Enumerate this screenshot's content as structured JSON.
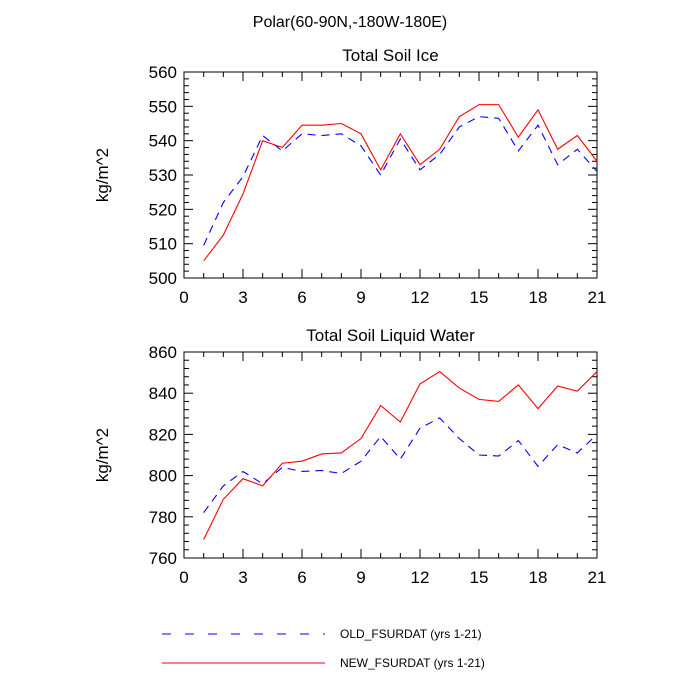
{
  "figure_title": "Polar(60-90N,-180W-180E)",
  "chart_data": [
    {
      "type": "line",
      "title": "Total Soil Ice",
      "xlabel": "",
      "ylabel": "kg/m^2",
      "xlim": [
        0,
        21
      ],
      "ylim": [
        500,
        560
      ],
      "xticks": [
        0,
        3,
        6,
        9,
        12,
        15,
        18,
        21
      ],
      "yticks": [
        500,
        510,
        520,
        530,
        540,
        550,
        560
      ],
      "x": [
        1,
        2,
        3,
        4,
        5,
        6,
        7,
        8,
        9,
        10,
        11,
        12,
        13,
        14,
        15,
        16,
        17,
        18,
        19,
        20,
        21
      ],
      "series": [
        {
          "name": "OLD_FSURDAT (yrs 1-21)",
          "color": "#0000ff",
          "dash": "dashed",
          "values": [
            509.5,
            522,
            529.5,
            541.5,
            537,
            542,
            541.5,
            542,
            538.5,
            530,
            540.5,
            531.5,
            536,
            544,
            547,
            546.5,
            537,
            544.5,
            533,
            537.5,
            531
          ]
        },
        {
          "name": "NEW_FSURDAT (yrs 1-21)",
          "color": "#ff0000",
          "dash": "solid",
          "values": [
            505,
            512.5,
            524.5,
            540,
            538,
            544.5,
            544.5,
            545,
            542,
            531.5,
            542,
            533,
            537.5,
            547,
            550.5,
            550.5,
            541,
            549,
            537.5,
            541.5,
            534
          ]
        }
      ]
    },
    {
      "type": "line",
      "title": "Total Soil Liquid Water",
      "xlabel": "",
      "ylabel": "kg/m^2",
      "xlim": [
        0,
        21
      ],
      "ylim": [
        760,
        860
      ],
      "xticks": [
        0,
        3,
        6,
        9,
        12,
        15,
        18,
        21
      ],
      "yticks": [
        760,
        780,
        800,
        820,
        840,
        860
      ],
      "x": [
        1,
        2,
        3,
        4,
        5,
        6,
        7,
        8,
        9,
        10,
        11,
        12,
        13,
        14,
        15,
        16,
        17,
        18,
        19,
        20,
        21
      ],
      "series": [
        {
          "name": "OLD_FSURDAT (yrs 1-21)",
          "color": "#0000ff",
          "dash": "dashed",
          "values": [
            782,
            795,
            802,
            796,
            804,
            802,
            802.5,
            801,
            807,
            819,
            808,
            823,
            828,
            818,
            810,
            809.5,
            817,
            804.5,
            815,
            811,
            820
          ]
        },
        {
          "name": "NEW_FSURDAT (yrs 1-21)",
          "color": "#ff0000",
          "dash": "solid",
          "values": [
            769,
            788.5,
            798.5,
            795,
            806,
            807,
            810.5,
            811,
            818,
            834,
            826,
            844.5,
            850.5,
            842.5,
            837,
            836,
            844,
            832.5,
            843.5,
            841,
            850.5
          ]
        }
      ]
    }
  ],
  "legend": [
    {
      "label": "OLD_FSURDAT (yrs 1-21)",
      "color": "#0000ff",
      "dash": "dashed"
    },
    {
      "label": "NEW_FSURDAT (yrs 1-21)",
      "color": "#ff0000",
      "dash": "solid"
    }
  ]
}
